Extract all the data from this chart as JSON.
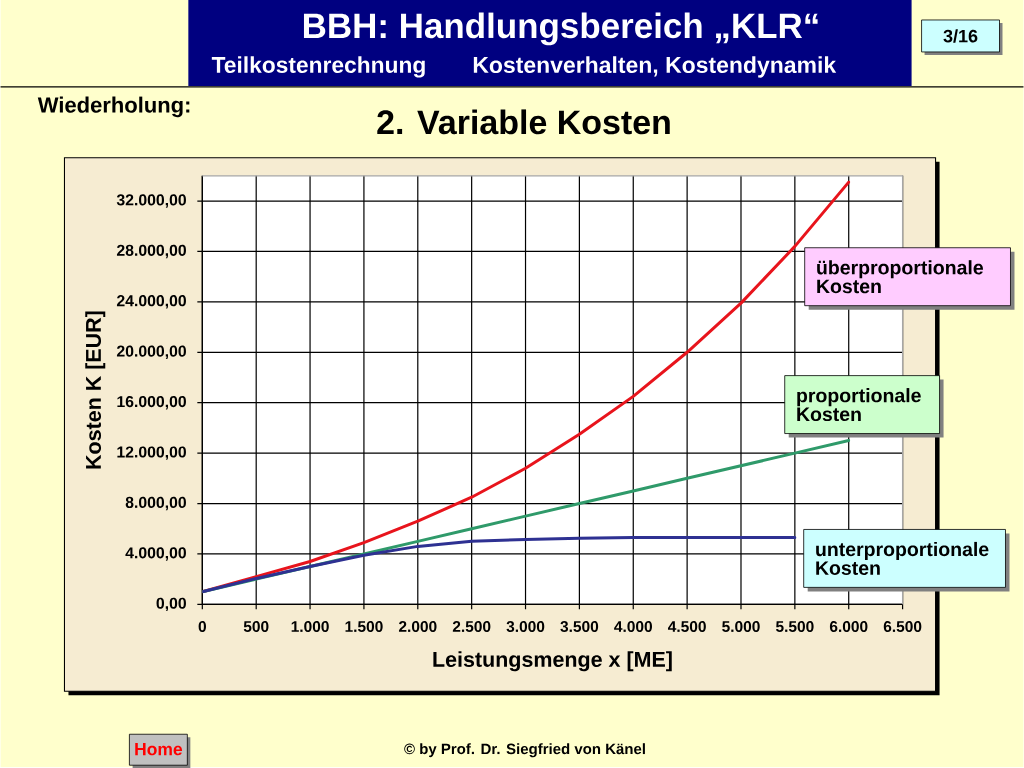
{
  "chart_data": {
    "type": "line",
    "title": "2. Variable Kosten",
    "xlabel": "Leistungsmenge x [ME]",
    "ylabel": "Kosten K [EUR]",
    "x": [
      0,
      500,
      1000,
      1500,
      2000,
      2500,
      3000,
      3500,
      4000,
      4500,
      5000,
      5500,
      6000
    ],
    "series": [
      {
        "name": "überproportionale Kosten",
        "color": "#e8141c",
        "values": [
          1000,
          2200,
          3400,
          4900,
          6600,
          8500,
          10800,
          13500,
          16500,
          20000,
          23900,
          28400,
          33500
        ]
      },
      {
        "name": "proportionale Kosten",
        "color": "#2f9a6a",
        "values": [
          1000,
          2000,
          3000,
          4000,
          5000,
          6000,
          7000,
          8000,
          9000,
          10000,
          11000,
          12000,
          13000
        ]
      },
      {
        "name": "unterproportionale Kosten",
        "color": "#2e3192",
        "values": [
          1000,
          2050,
          3000,
          3900,
          4600,
          5000,
          5150,
          5250,
          5300,
          5300,
          5300,
          5300,
          null
        ]
      }
    ],
    "xlim": [
      0,
      6500
    ],
    "ylim": [
      0,
      34000
    ],
    "xticks": [
      0,
      500,
      {
        "value": 1000,
        "label": "1.000"
      },
      {
        "value": 1500,
        "label": "1.500"
      },
      {
        "value": 2000,
        "label": "2.000"
      },
      {
        "value": 2500,
        "label": "2.500"
      },
      {
        "value": 3000,
        "label": "3.000"
      },
      {
        "value": 3500,
        "label": "3.500"
      },
      {
        "value": 4000,
        "label": "4.000"
      },
      {
        "value": 4500,
        "label": "4.500"
      },
      {
        "value": 5000,
        "label": "5.000"
      },
      {
        "value": 5500,
        "label": "5.500"
      },
      {
        "value": 6000,
        "label": "6.000"
      },
      {
        "value": 6500,
        "label": "6.500"
      }
    ],
    "yticks": [
      {
        "value": 0,
        "label": "0,00"
      },
      {
        "value": 4000,
        "label": "4.000,00"
      },
      {
        "value": 8000,
        "label": "8.000,00"
      },
      {
        "value": 12000,
        "label": "12.000,00"
      },
      {
        "value": 16000,
        "label": "16.000,00"
      },
      {
        "value": 20000,
        "label": "20.000,00"
      },
      {
        "value": 24000,
        "label": "24.000,00"
      },
      {
        "value": 28000,
        "label": "28.000,00"
      },
      {
        "value": 32000,
        "label": "32.000,00"
      }
    ],
    "grid": true,
    "marker": "none",
    "annotations": [
      "BBH: Handlungsbereich „KLR“",
      "Teilkostenrechnung",
      "Kostenverhalten, Kostendynamik",
      "3/16",
      "Wiederholung:",
      "© by Prof. Dr. Siegfried von Känel",
      "Home"
    ]
  }
}
